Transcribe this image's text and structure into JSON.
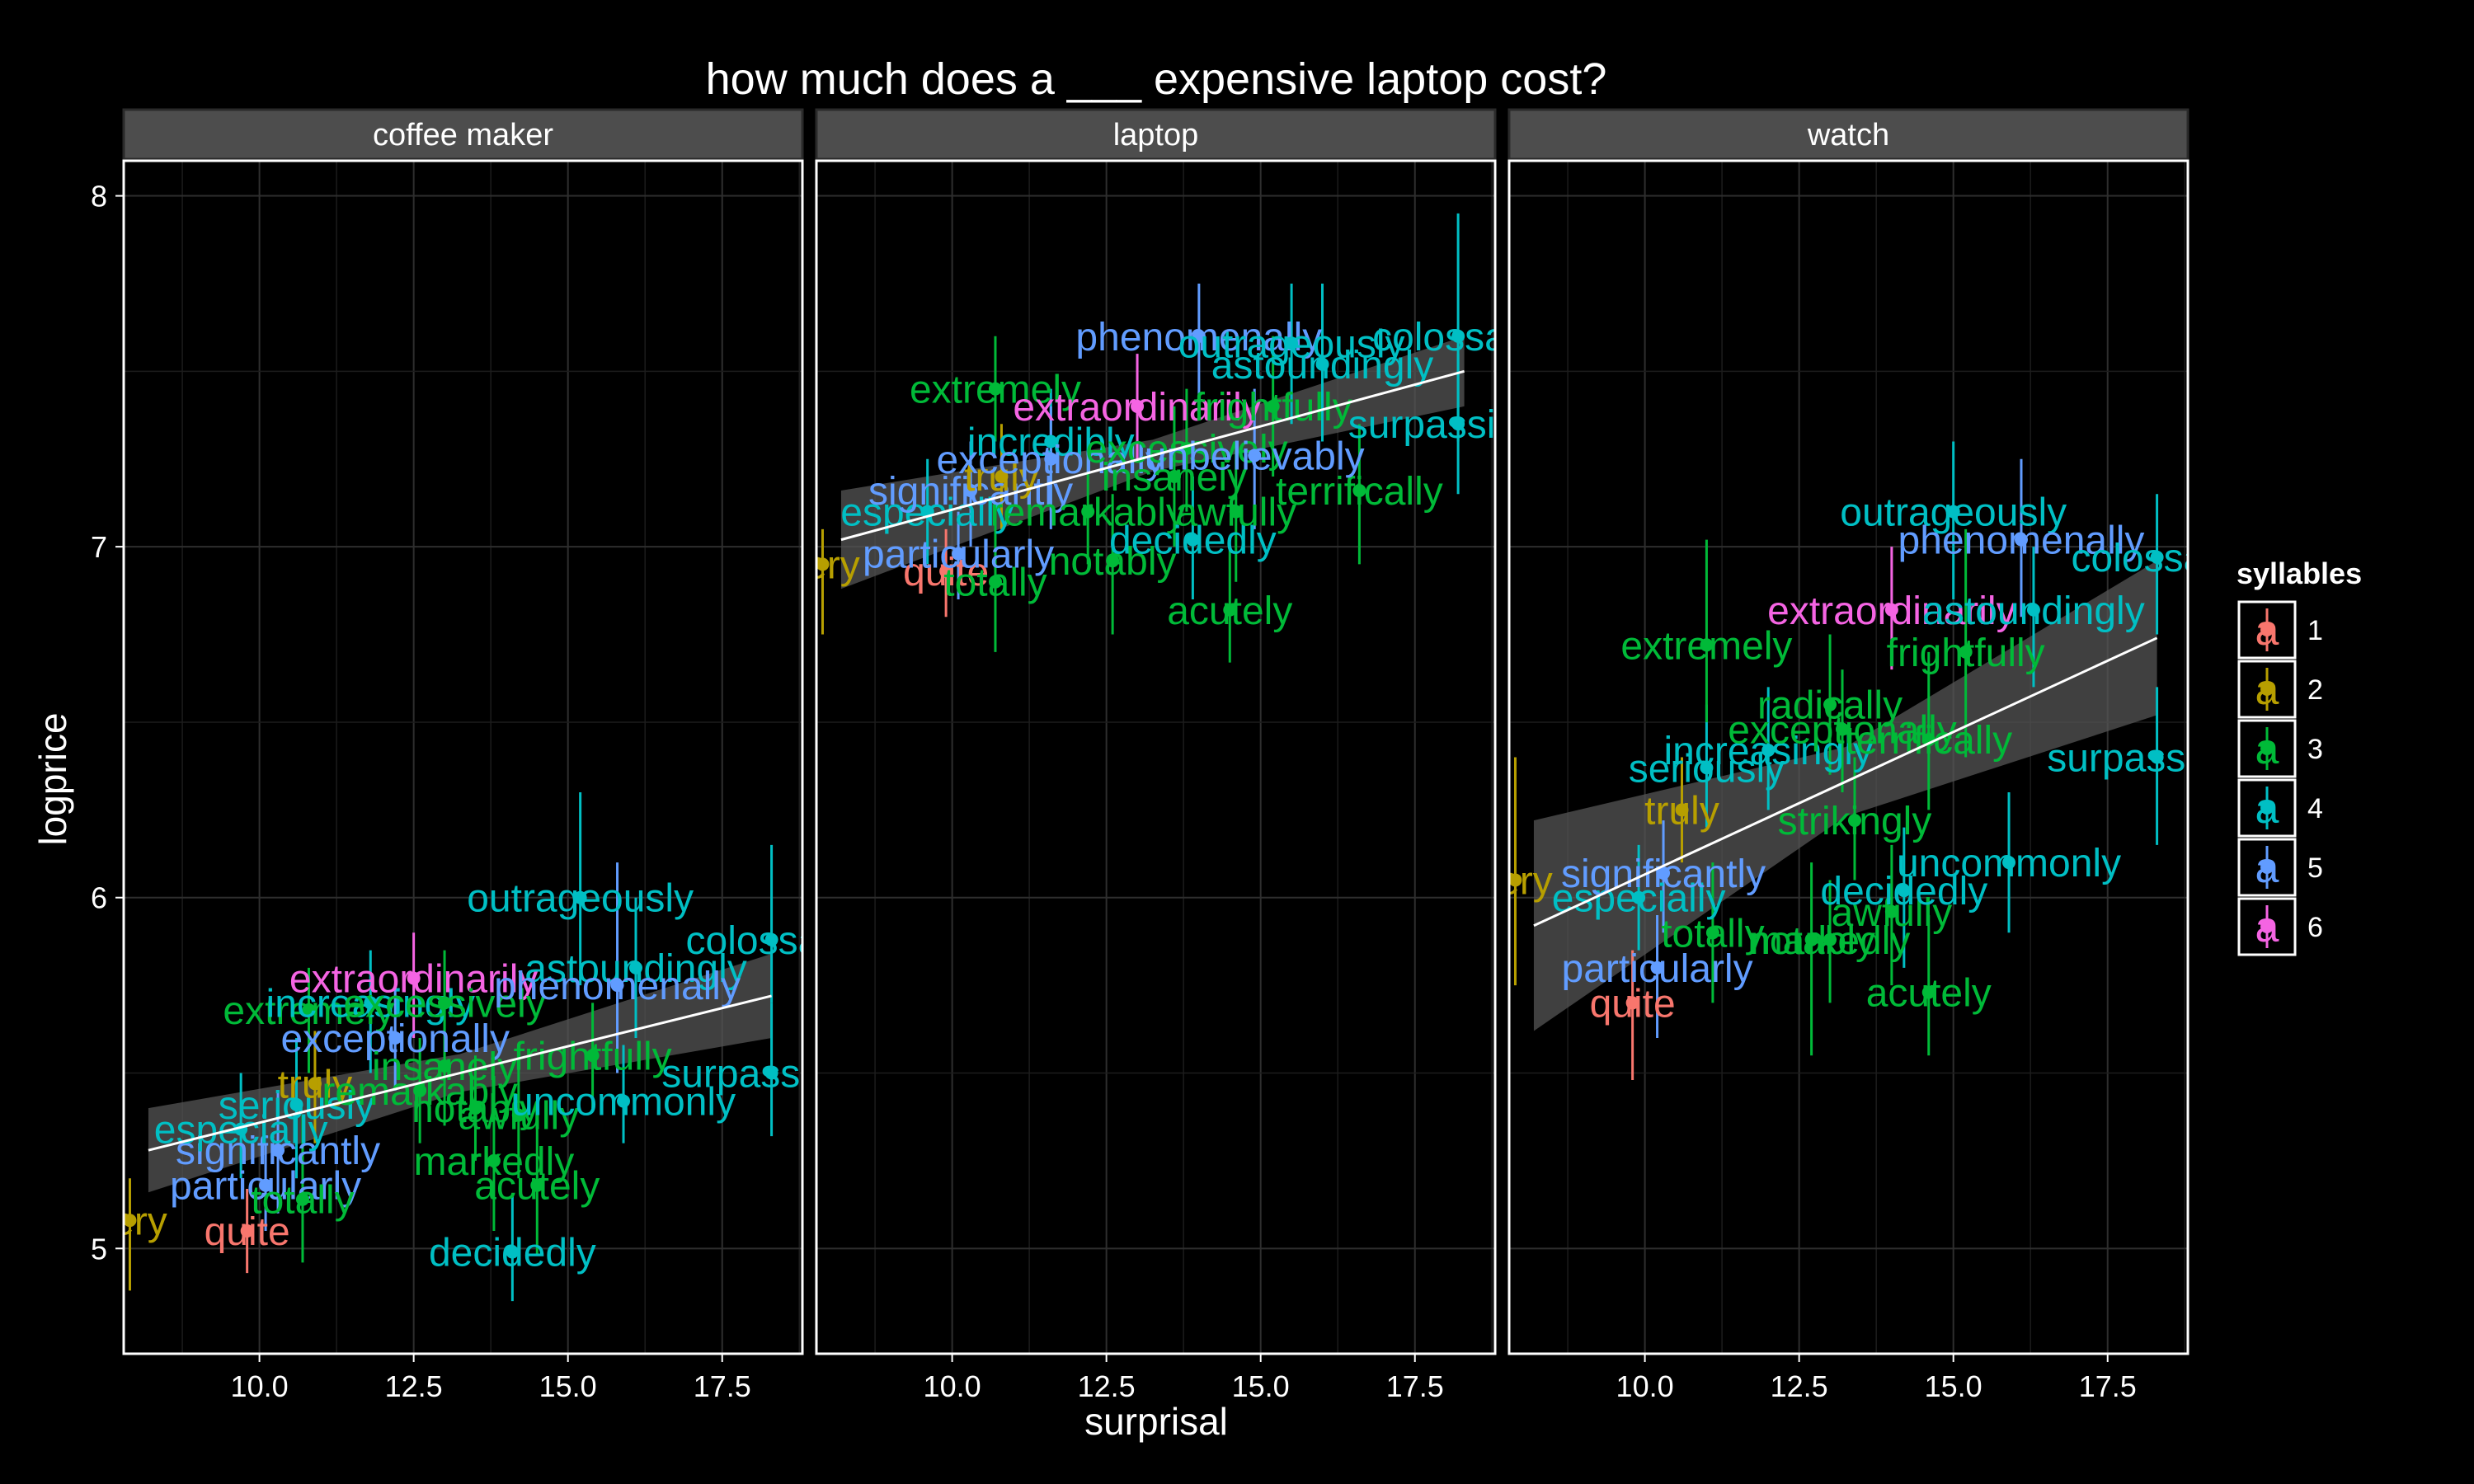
{
  "chart_data": {
    "type": "scatter",
    "title": "how much does a ___ expensive laptop cost?",
    "xlabel": "surprisal",
    "ylabel": "logprice",
    "xlim": [
      7.8,
      18.8
    ],
    "ylim": [
      4.7,
      8.1
    ],
    "x_ticks": [
      10.0,
      12.5,
      15.0,
      17.5
    ],
    "x_tick_labels": [
      "10.0",
      "12.5",
      "15.0",
      "17.5"
    ],
    "y_ticks": [
      5,
      6,
      7,
      8
    ],
    "y_tick_labels": [
      "5",
      "6",
      "7",
      "8"
    ],
    "grid": true,
    "legend": {
      "title": "syllables",
      "position": "right",
      "entries": [
        {
          "label": "1",
          "key": "a",
          "color": "#F8766D"
        },
        {
          "label": "2",
          "key": "a",
          "color": "#B79F00"
        },
        {
          "label": "3",
          "key": "a",
          "color": "#00BA38"
        },
        {
          "label": "4",
          "key": "a",
          "color": "#00BFC4"
        },
        {
          "label": "5",
          "key": "a",
          "color": "#619CFF"
        },
        {
          "label": "6",
          "key": "a",
          "color": "#F564E3"
        }
      ]
    },
    "panels": [
      {
        "name": "coffee maker",
        "fit": {
          "x0": 8.2,
          "y0": 5.28,
          "x1": 18.3,
          "y1": 5.72,
          "se0": 0.12,
          "se1": 0.12
        },
        "points": [
          {
            "label": "very",
            "x": 7.9,
            "y": 5.08,
            "lo": 4.88,
            "hi": 5.2,
            "s": 2
          },
          {
            "label": "quite",
            "x": 9.8,
            "y": 5.05,
            "lo": 4.93,
            "hi": 5.17,
            "s": 1
          },
          {
            "label": "particularly",
            "x": 10.1,
            "y": 5.18,
            "lo": 5.05,
            "hi": 5.3,
            "s": 5
          },
          {
            "label": "totally",
            "x": 10.7,
            "y": 5.14,
            "lo": 4.96,
            "hi": 5.38,
            "s": 3
          },
          {
            "label": "significantly",
            "x": 10.3,
            "y": 5.28,
            "lo": 5.1,
            "hi": 5.45,
            "s": 5
          },
          {
            "label": "especially",
            "x": 9.7,
            "y": 5.34,
            "lo": 5.2,
            "hi": 5.5,
            "s": 4
          },
          {
            "label": "seriously",
            "x": 10.6,
            "y": 5.41,
            "lo": 5.2,
            "hi": 5.6,
            "s": 4
          },
          {
            "label": "truly",
            "x": 10.9,
            "y": 5.47,
            "lo": 5.3,
            "hi": 5.62,
            "s": 2
          },
          {
            "label": "extremely",
            "x": 10.8,
            "y": 5.68,
            "lo": 5.5,
            "hi": 5.8,
            "s": 3
          },
          {
            "label": "increasingly",
            "x": 11.8,
            "y": 5.7,
            "lo": 5.5,
            "hi": 5.85,
            "s": 4
          },
          {
            "label": "exceptionally",
            "x": 12.2,
            "y": 5.6,
            "lo": 5.45,
            "hi": 5.75,
            "s": 5
          },
          {
            "label": "extraordinarily",
            "x": 12.5,
            "y": 5.77,
            "lo": 5.6,
            "hi": 5.9,
            "s": 6
          },
          {
            "label": "excessively",
            "x": 13.0,
            "y": 5.7,
            "lo": 5.5,
            "hi": 5.85,
            "s": 3
          },
          {
            "label": "insanely",
            "x": 13.0,
            "y": 5.52,
            "lo": 5.35,
            "hi": 5.68,
            "s": 3
          },
          {
            "label": "remarkably",
            "x": 12.6,
            "y": 5.45,
            "lo": 5.3,
            "hi": 5.6,
            "s": 3
          },
          {
            "label": "notably",
            "x": 13.5,
            "y": 5.4,
            "lo": 5.25,
            "hi": 5.55,
            "s": 3
          },
          {
            "label": "markedly",
            "x": 13.8,
            "y": 5.25,
            "lo": 5.05,
            "hi": 5.42,
            "s": 3
          },
          {
            "label": "acutely",
            "x": 14.5,
            "y": 5.18,
            "lo": 4.98,
            "hi": 5.38,
            "s": 3
          },
          {
            "label": "decidedly",
            "x": 14.1,
            "y": 4.99,
            "lo": 4.85,
            "hi": 5.15,
            "s": 4
          },
          {
            "label": "awfully",
            "x": 14.2,
            "y": 5.38,
            "lo": 5.2,
            "hi": 5.55,
            "s": 3
          },
          {
            "label": "frightfully",
            "x": 15.4,
            "y": 5.55,
            "lo": 5.4,
            "hi": 5.7,
            "s": 3
          },
          {
            "label": "uncommonly",
            "x": 15.9,
            "y": 5.42,
            "lo": 5.3,
            "hi": 5.58,
            "s": 4
          },
          {
            "label": "outrageously",
            "x": 15.2,
            "y": 6.0,
            "lo": 5.75,
            "hi": 6.3,
            "s": 4
          },
          {
            "label": "astoundingly",
            "x": 16.1,
            "y": 5.8,
            "lo": 5.6,
            "hi": 6.0,
            "s": 4
          },
          {
            "label": "phenomenally",
            "x": 15.8,
            "y": 5.75,
            "lo": 5.5,
            "hi": 6.1,
            "s": 5
          },
          {
            "label": "colossally",
            "x": 18.3,
            "y": 5.88,
            "lo": 5.7,
            "hi": 6.15,
            "s": 4
          },
          {
            "label": "surpassingly",
            "x": 18.3,
            "y": 5.5,
            "lo": 5.32,
            "hi": 5.7,
            "s": 4
          }
        ]
      },
      {
        "name": "laptop",
        "fit": {
          "x0": 8.2,
          "y0": 7.02,
          "x1": 18.3,
          "y1": 7.5,
          "se0": 0.14,
          "se1": 0.1
        },
        "points": [
          {
            "label": "very",
            "x": 7.9,
            "y": 6.95,
            "lo": 6.75,
            "hi": 7.05,
            "s": 2
          },
          {
            "label": "quite",
            "x": 9.9,
            "y": 6.93,
            "lo": 6.8,
            "hi": 7.05,
            "s": 1
          },
          {
            "label": "totally",
            "x": 10.7,
            "y": 6.9,
            "lo": 6.7,
            "hi": 7.1,
            "s": 3
          },
          {
            "label": "particularly",
            "x": 10.1,
            "y": 6.98,
            "lo": 6.85,
            "hi": 7.1,
            "s": 5
          },
          {
            "label": "especially",
            "x": 9.6,
            "y": 7.1,
            "lo": 6.95,
            "hi": 7.25,
            "s": 4
          },
          {
            "label": "significantly",
            "x": 10.3,
            "y": 7.16,
            "lo": 7.0,
            "hi": 7.3,
            "s": 5
          },
          {
            "label": "truly",
            "x": 10.8,
            "y": 7.2,
            "lo": 7.05,
            "hi": 7.35,
            "s": 2
          },
          {
            "label": "extremely",
            "x": 10.7,
            "y": 7.45,
            "lo": 7.3,
            "hi": 7.6,
            "s": 3
          },
          {
            "label": "incredibly",
            "x": 11.6,
            "y": 7.3,
            "lo": 7.1,
            "hi": 7.45,
            "s": 4
          },
          {
            "label": "exceptionally",
            "x": 11.6,
            "y": 7.25,
            "lo": 7.05,
            "hi": 7.4,
            "s": 5
          },
          {
            "label": "extraordinarily",
            "x": 13.0,
            "y": 7.4,
            "lo": 7.25,
            "hi": 7.55,
            "s": 6
          },
          {
            "label": "remarkably",
            "x": 12.2,
            "y": 7.1,
            "lo": 6.95,
            "hi": 7.25,
            "s": 3
          },
          {
            "label": "notably",
            "x": 12.6,
            "y": 6.96,
            "lo": 6.75,
            "hi": 7.15,
            "s": 3
          },
          {
            "label": "decidedly",
            "x": 13.9,
            "y": 7.02,
            "lo": 6.85,
            "hi": 7.2,
            "s": 4
          },
          {
            "label": "acutely",
            "x": 14.5,
            "y": 6.82,
            "lo": 6.67,
            "hi": 7.0,
            "s": 3
          },
          {
            "label": "awfully",
            "x": 14.6,
            "y": 7.1,
            "lo": 6.9,
            "hi": 7.3,
            "s": 3
          },
          {
            "label": "insanely",
            "x": 13.6,
            "y": 7.2,
            "lo": 7.0,
            "hi": 7.4,
            "s": 3
          },
          {
            "label": "excessively",
            "x": 13.8,
            "y": 7.28,
            "lo": 7.1,
            "hi": 7.45,
            "s": 3
          },
          {
            "label": "frightfully",
            "x": 15.2,
            "y": 7.4,
            "lo": 7.2,
            "hi": 7.6,
            "s": 3
          },
          {
            "label": "terrifically",
            "x": 16.6,
            "y": 7.16,
            "lo": 6.95,
            "hi": 7.35,
            "s": 3
          },
          {
            "label": "unbelievably",
            "x": 14.9,
            "y": 7.26,
            "lo": 7.05,
            "hi": 7.45,
            "s": 5
          },
          {
            "label": "phenomenally",
            "x": 14.0,
            "y": 7.6,
            "lo": 7.4,
            "hi": 7.75,
            "s": 5
          },
          {
            "label": "outrageously",
            "x": 15.5,
            "y": 7.58,
            "lo": 7.35,
            "hi": 7.75,
            "s": 4
          },
          {
            "label": "astoundingly",
            "x": 16.0,
            "y": 7.52,
            "lo": 7.3,
            "hi": 7.75,
            "s": 4
          },
          {
            "label": "colossally",
            "x": 18.2,
            "y": 7.6,
            "lo": 7.3,
            "hi": 7.95,
            "s": 4
          },
          {
            "label": "surpassingly",
            "x": 18.2,
            "y": 7.35,
            "lo": 7.15,
            "hi": 7.55,
            "s": 4
          }
        ]
      },
      {
        "name": "watch",
        "fit": {
          "x0": 8.2,
          "y0": 5.92,
          "x1": 18.3,
          "y1": 6.74,
          "se0": 0.3,
          "se1": 0.22
        },
        "points": [
          {
            "label": "very",
            "x": 7.9,
            "y": 6.05,
            "lo": 5.75,
            "hi": 6.4,
            "s": 2
          },
          {
            "label": "quite",
            "x": 9.8,
            "y": 5.7,
            "lo": 5.48,
            "hi": 5.85,
            "s": 1
          },
          {
            "label": "particularly",
            "x": 10.2,
            "y": 5.8,
            "lo": 5.6,
            "hi": 5.95,
            "s": 5
          },
          {
            "label": "especially",
            "x": 9.9,
            "y": 6.0,
            "lo": 5.85,
            "hi": 6.15,
            "s": 4
          },
          {
            "label": "significantly",
            "x": 10.3,
            "y": 6.07,
            "lo": 5.9,
            "hi": 6.22,
            "s": 5
          },
          {
            "label": "truly",
            "x": 10.6,
            "y": 6.25,
            "lo": 6.1,
            "hi": 6.4,
            "s": 2
          },
          {
            "label": "totally",
            "x": 11.1,
            "y": 5.9,
            "lo": 5.7,
            "hi": 6.1,
            "s": 3
          },
          {
            "label": "seriously",
            "x": 11.0,
            "y": 6.37,
            "lo": 6.2,
            "hi": 6.55,
            "s": 4
          },
          {
            "label": "extremely",
            "x": 11.0,
            "y": 6.72,
            "lo": 6.5,
            "hi": 7.02,
            "s": 3
          },
          {
            "label": "increasingly",
            "x": 12.0,
            "y": 6.42,
            "lo": 6.25,
            "hi": 6.6,
            "s": 4
          },
          {
            "label": "radically",
            "x": 13.0,
            "y": 6.55,
            "lo": 6.35,
            "hi": 6.75,
            "s": 3
          },
          {
            "label": "exceptionally",
            "x": 13.2,
            "y": 6.48,
            "lo": 6.3,
            "hi": 6.65,
            "s": 3
          },
          {
            "label": "strikingly",
            "x": 13.4,
            "y": 6.22,
            "lo": 6.05,
            "hi": 6.4,
            "s": 3
          },
          {
            "label": "notably",
            "x": 12.7,
            "y": 5.88,
            "lo": 5.55,
            "hi": 6.1,
            "s": 3
          },
          {
            "label": "markedly",
            "x": 13.0,
            "y": 5.88,
            "lo": 5.7,
            "hi": 6.05,
            "s": 3
          },
          {
            "label": "awfully",
            "x": 14.0,
            "y": 5.96,
            "lo": 5.75,
            "hi": 6.15,
            "s": 3
          },
          {
            "label": "decidedly",
            "x": 14.2,
            "y": 6.02,
            "lo": 5.8,
            "hi": 6.2,
            "s": 4
          },
          {
            "label": "acutely",
            "x": 14.6,
            "y": 5.73,
            "lo": 5.55,
            "hi": 5.95,
            "s": 3
          },
          {
            "label": "uncommonly",
            "x": 15.9,
            "y": 6.1,
            "lo": 5.9,
            "hi": 6.3,
            "s": 4
          },
          {
            "label": "frightfully",
            "x": 15.2,
            "y": 6.7,
            "lo": 6.4,
            "hi": 7.05,
            "s": 3
          },
          {
            "label": "terrifically",
            "x": 14.6,
            "y": 6.45,
            "lo": 6.25,
            "hi": 6.7,
            "s": 3
          },
          {
            "label": "extraordinarily",
            "x": 14.0,
            "y": 6.82,
            "lo": 6.65,
            "hi": 7.0,
            "s": 6
          },
          {
            "label": "astoundingly",
            "x": 16.3,
            "y": 6.82,
            "lo": 6.6,
            "hi": 7.0,
            "s": 4
          },
          {
            "label": "outrageously",
            "x": 15.0,
            "y": 7.1,
            "lo": 6.85,
            "hi": 7.3,
            "s": 4
          },
          {
            "label": "phenomenally",
            "x": 16.1,
            "y": 7.02,
            "lo": 6.8,
            "hi": 7.25,
            "s": 5
          },
          {
            "label": "colossally",
            "x": 18.3,
            "y": 6.97,
            "lo": 6.75,
            "hi": 7.15,
            "s": 4
          },
          {
            "label": "surpassingly",
            "x": 18.3,
            "y": 6.4,
            "lo": 6.15,
            "hi": 6.6,
            "s": 4
          }
        ]
      }
    ]
  }
}
